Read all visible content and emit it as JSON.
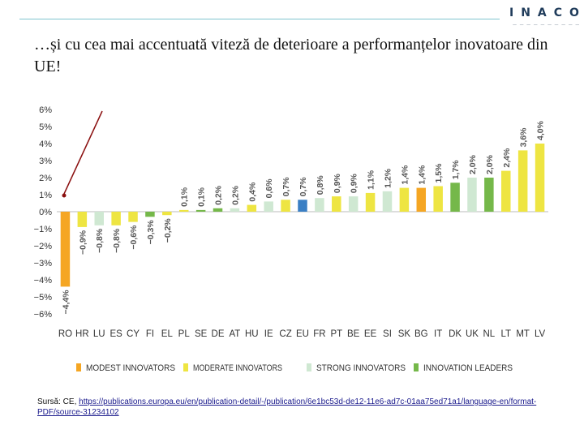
{
  "slide": {
    "title": "…și cu cea mai accentuată viteză de deterioare a performanțelor inovatoare din UE!",
    "logo_text": "INACO",
    "source_prefix": "Sursă: CE, ",
    "source_link": "https://publications.europa.eu/en/publication-detail/-/publication/6e1bc53d-de12-11e6-ad7c-01aa75ed71a1/language-en/format-PDF/source-31234102"
  },
  "colors": {
    "modest": "#f5a623",
    "moderate": "#eee542",
    "strong": "#cfe8d2",
    "leader": "#75b84a",
    "eu": "#3a7fc4",
    "rule": "#7fc4cf",
    "arrow": "#8b1010"
  },
  "chart_data": {
    "type": "bar",
    "categories": [
      "RO",
      "HR",
      "LU",
      "ES",
      "CY",
      "FI",
      "EL",
      "PL",
      "SE",
      "DE",
      "AT",
      "HU",
      "IE",
      "CZ",
      "EU",
      "FR",
      "PT",
      "BE",
      "EE",
      "SI",
      "SK",
      "BG",
      "IT",
      "DK",
      "UK",
      "NL",
      "LT",
      "MT",
      "LV"
    ],
    "values": [
      -4.4,
      -0.9,
      -0.8,
      -0.8,
      -0.6,
      -0.3,
      -0.2,
      0.1,
      0.1,
      0.2,
      0.2,
      0.4,
      0.6,
      0.7,
      0.7,
      0.8,
      0.9,
      0.9,
      1.1,
      1.2,
      1.4,
      1.4,
      1.5,
      1.7,
      2.0,
      2.0,
      2.4,
      3.6,
      4.0
    ],
    "value_labels": [
      "−4,4%",
      "−0,9%",
      "−0,8%",
      "−0,8%",
      "−0,6%",
      "−0,3%",
      "−0,2%",
      "0,1%",
      "0,1%",
      "0,2%",
      "0,2%",
      "0,4%",
      "0,6%",
      "0,7%",
      "0,7%",
      "0,8%",
      "0,9%",
      "0,9%",
      "1,1%",
      "1,2%",
      "1,4%",
      "1,4%",
      "1,5%",
      "1,7%",
      "2,0%",
      "2,0%",
      "2,4%",
      "3,6%",
      "4,0%"
    ],
    "groups": [
      "modest",
      "moderate",
      "strong",
      "moderate",
      "moderate",
      "leader",
      "moderate",
      "moderate",
      "leader",
      "leader",
      "strong",
      "moderate",
      "strong",
      "moderate",
      "eu",
      "strong",
      "moderate",
      "strong",
      "moderate",
      "strong",
      "moderate",
      "modest",
      "moderate",
      "leader",
      "strong",
      "leader",
      "moderate",
      "moderate",
      "moderate"
    ],
    "y_ticks": [
      6,
      5,
      4,
      3,
      2,
      1,
      0,
      -1,
      -2,
      -3,
      -4,
      -5,
      -6
    ],
    "y_tick_labels": [
      "6%",
      "5%",
      "4%",
      "3%",
      "2%",
      "1%",
      "0%",
      "−1%",
      "−2%",
      "−3%",
      "−4%",
      "−5%",
      "−6%"
    ],
    "ylim": [
      -6,
      6
    ],
    "grid": false,
    "legend_position": "bottom",
    "legend": [
      {
        "key": "modest",
        "label": "MODEST INNOVATORS"
      },
      {
        "key": "moderate",
        "label": "MODERATE INNOVATORS"
      },
      {
        "key": "strong",
        "label": "STRONG INNOVATORS"
      },
      {
        "key": "leader",
        "label": "INNOVATION LEADERS"
      }
    ]
  }
}
